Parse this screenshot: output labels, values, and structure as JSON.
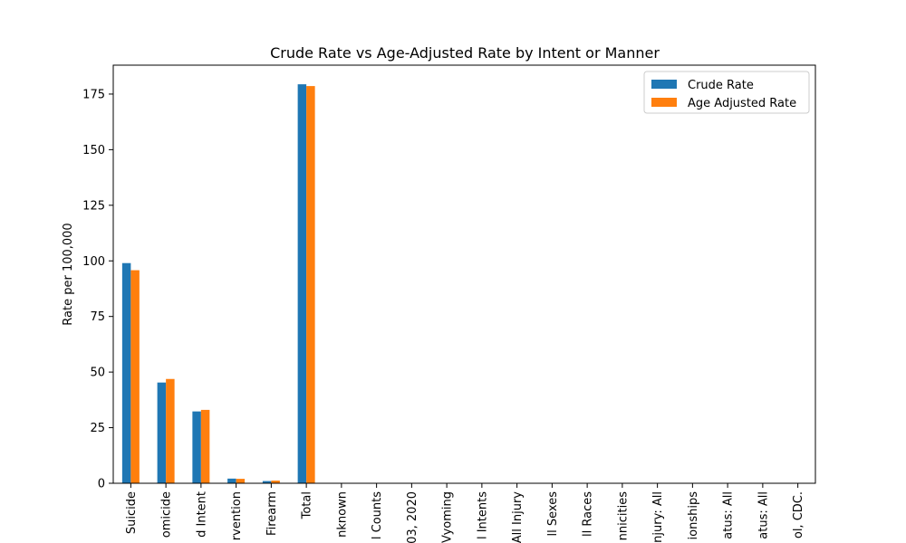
{
  "chart_data": {
    "type": "bar",
    "title": "Crude Rate vs Age-Adjusted Rate by Intent or Manner",
    "xlabel": "",
    "ylabel": "Rate per 100,000",
    "ylim": [
      0,
      188
    ],
    "yticks": [
      "0",
      "25",
      "50",
      "75",
      "100",
      "125",
      "150",
      "175"
    ],
    "grid": false,
    "legend_position": "top-right",
    "categories": [
      "Suicide",
      "omicide",
      "d Intent",
      "rvention",
      "Firearm",
      "Total",
      "nknown",
      "l Counts",
      "03, 2020",
      "Vyoming",
      "l Intents",
      "All Injury",
      "ll Sexes",
      "ll Races",
      "nnicities",
      "njury: All",
      "ionships",
      "atus: All",
      "atus: All",
      "ol, CDC."
    ],
    "series": [
      {
        "name": "Crude Rate",
        "color": "#1f77b4",
        "values": [
          99,
          45.3,
          32.3,
          2.1,
          1.0,
          179.4,
          null,
          null,
          null,
          null,
          null,
          null,
          null,
          null,
          null,
          null,
          null,
          null,
          null,
          null
        ]
      },
      {
        "name": "Age Adjusted Rate",
        "color": "#ff7f0e",
        "values": [
          95.8,
          46.9,
          33.0,
          2.0,
          1.2,
          178.6,
          null,
          null,
          null,
          null,
          null,
          null,
          null,
          null,
          null,
          null,
          null,
          null,
          null,
          null
        ]
      }
    ]
  }
}
